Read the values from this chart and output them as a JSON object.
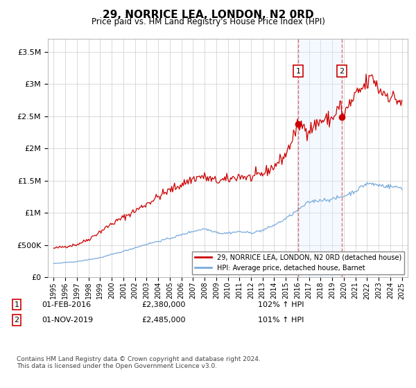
{
  "title": "29, NORRICE LEA, LONDON, N2 0RD",
  "subtitle": "Price paid vs. HM Land Registry's House Price Index (HPI)",
  "legend_line1": "29, NORRICE LEA, LONDON, N2 0RD (detached house)",
  "legend_line2": "HPI: Average price, detached house, Barnet",
  "annotation1_label": "1",
  "annotation1_date": "01-FEB-2016",
  "annotation1_price": "£2,380,000",
  "annotation1_hpi": "102% ↑ HPI",
  "annotation2_label": "2",
  "annotation2_date": "01-NOV-2019",
  "annotation2_price": "£2,485,000",
  "annotation2_hpi": "101% ↑ HPI",
  "footer": "Contains HM Land Registry data © Crown copyright and database right 2024.\nThis data is licensed under the Open Government Licence v3.0.",
  "red_color": "#cc0000",
  "blue_color": "#7aabdc",
  "shade_color": "#ddeeff",
  "dashed_color": "#dd7777",
  "marker1_x": 2016.08,
  "marker1_y": 2380000,
  "marker2_x": 2019.83,
  "marker2_y": 2485000,
  "shade_x1": 2016.08,
  "shade_x2": 2019.83,
  "ylim": [
    0,
    3700000
  ],
  "xlim": [
    1994.5,
    2025.5
  ]
}
